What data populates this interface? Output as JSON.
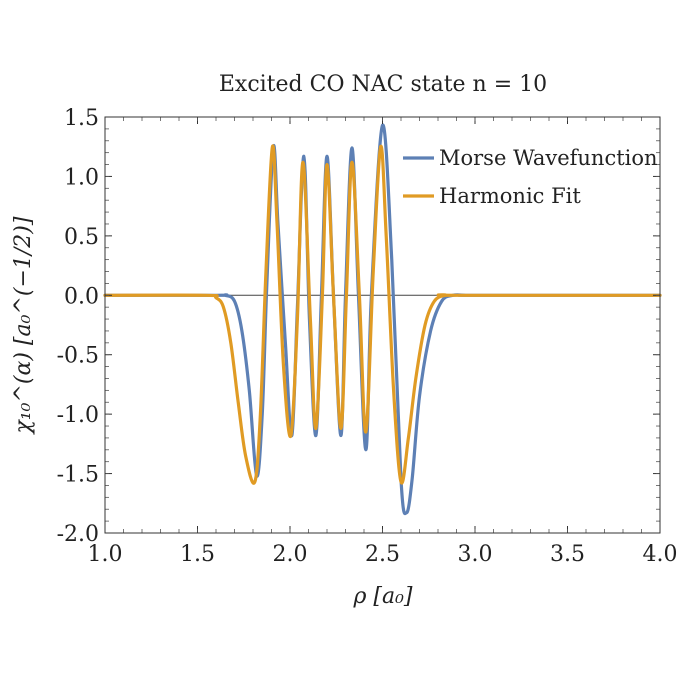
{
  "chart_data": {
    "type": "line",
    "title": "Excited CO NAC state n = 10",
    "xlabel": "ρ [a₀]",
    "ylabel": "χ₁₀^(α) [a₀^(−1/2)]",
    "xlim": [
      1.0,
      4.0
    ],
    "ylim": [
      -2.0,
      1.5
    ],
    "x_ticks": [
      "1.0",
      "1.5",
      "2.0",
      "2.5",
      "3.0",
      "3.5",
      "4.0"
    ],
    "y_ticks": [
      "-2.0",
      "-1.5",
      "-1.0",
      "-0.5",
      "0.0",
      "0.5",
      "1.0",
      "1.5"
    ],
    "legend_position": "top-right",
    "series": [
      {
        "name": "Morse Wavefunction",
        "color": "#5d80b5",
        "x": [
          1.0,
          1.6,
          1.65,
          1.7,
          1.74,
          1.78,
          1.82,
          1.85,
          1.875,
          1.91,
          1.935,
          1.975,
          2.01,
          2.04,
          2.075,
          2.105,
          2.14,
          2.17,
          2.2,
          2.235,
          2.275,
          2.3,
          2.335,
          2.37,
          2.41,
          2.44,
          2.5,
          2.55,
          2.6,
          2.63,
          2.66,
          2.7,
          2.76,
          2.82,
          2.88,
          2.95,
          3.0,
          4.0
        ],
        "y": [
          0.0,
          0.0,
          0.0,
          -0.05,
          -0.3,
          -0.8,
          -1.52,
          -1.0,
          0.1,
          1.25,
          0.6,
          -0.4,
          -1.18,
          -0.1,
          1.17,
          -0.2,
          -1.18,
          0.0,
          1.17,
          0.0,
          -1.18,
          0.0,
          1.24,
          0.0,
          -1.3,
          0.0,
          1.43,
          0.3,
          -1.55,
          -1.83,
          -1.55,
          -0.85,
          -0.3,
          -0.05,
          0.0,
          0.0,
          0.0,
          0.0
        ]
      },
      {
        "name": "Harmonic Fit",
        "color": "#e09b24",
        "x": [
          1.0,
          1.55,
          1.6,
          1.64,
          1.68,
          1.72,
          1.76,
          1.81,
          1.84,
          1.87,
          1.905,
          1.93,
          1.965,
          2.005,
          2.04,
          2.07,
          2.11,
          2.14,
          2.175,
          2.2,
          2.235,
          2.275,
          2.305,
          2.335,
          2.375,
          2.41,
          2.45,
          2.49,
          2.52,
          2.56,
          2.6,
          2.64,
          2.68,
          2.73,
          2.78,
          2.84,
          2.9,
          4.0
        ],
        "y": [
          0.0,
          0.0,
          -0.02,
          -0.1,
          -0.4,
          -0.9,
          -1.35,
          -1.57,
          -1.0,
          0.2,
          1.25,
          0.6,
          -0.6,
          -1.18,
          -0.2,
          1.12,
          -0.2,
          -1.12,
          0.0,
          1.1,
          0.0,
          -1.12,
          0.0,
          1.12,
          0.0,
          -1.15,
          0.2,
          1.25,
          0.5,
          -0.8,
          -1.57,
          -1.2,
          -0.7,
          -0.25,
          -0.05,
          0.0,
          0.0,
          0.0
        ]
      }
    ]
  }
}
